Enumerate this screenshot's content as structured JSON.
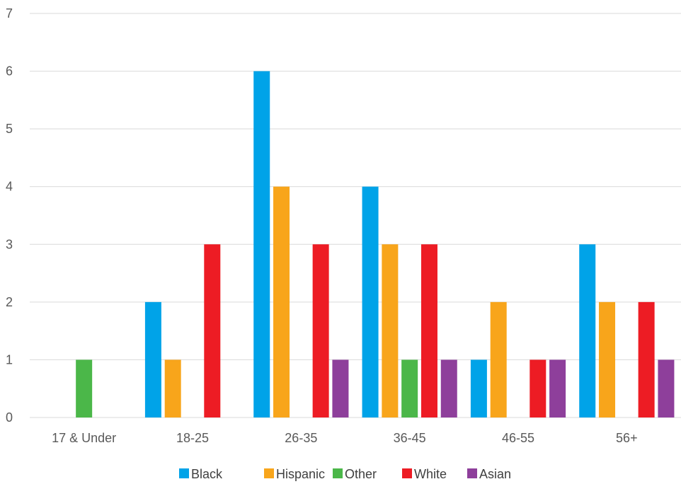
{
  "chart_data": {
    "type": "bar",
    "title": "",
    "xlabel": "",
    "ylabel": "",
    "categories": [
      "17 & Under",
      "18-25",
      "26-35",
      "36-45",
      "46-55",
      "56+"
    ],
    "ylim": [
      0,
      7
    ],
    "yticks": [
      0,
      1,
      2,
      3,
      4,
      5,
      6,
      7
    ],
    "grid": true,
    "legend_position": "bottom",
    "series": [
      {
        "name": "Black",
        "color": "#00a3e8",
        "values": [
          0,
          2,
          6,
          4,
          1,
          3
        ]
      },
      {
        "name": "Hispanic",
        "color": "#f8a51b",
        "values": [
          0,
          1,
          4,
          3,
          2,
          2
        ]
      },
      {
        "name": "Other",
        "color": "#4bb749",
        "values": [
          1,
          0,
          0,
          1,
          0,
          0
        ]
      },
      {
        "name": "White",
        "color": "#ed1c24",
        "values": [
          0,
          3,
          3,
          3,
          1,
          2
        ]
      },
      {
        "name": "Asian",
        "color": "#8e3f9b",
        "values": [
          0,
          0,
          1,
          1,
          1,
          1
        ]
      }
    ]
  }
}
